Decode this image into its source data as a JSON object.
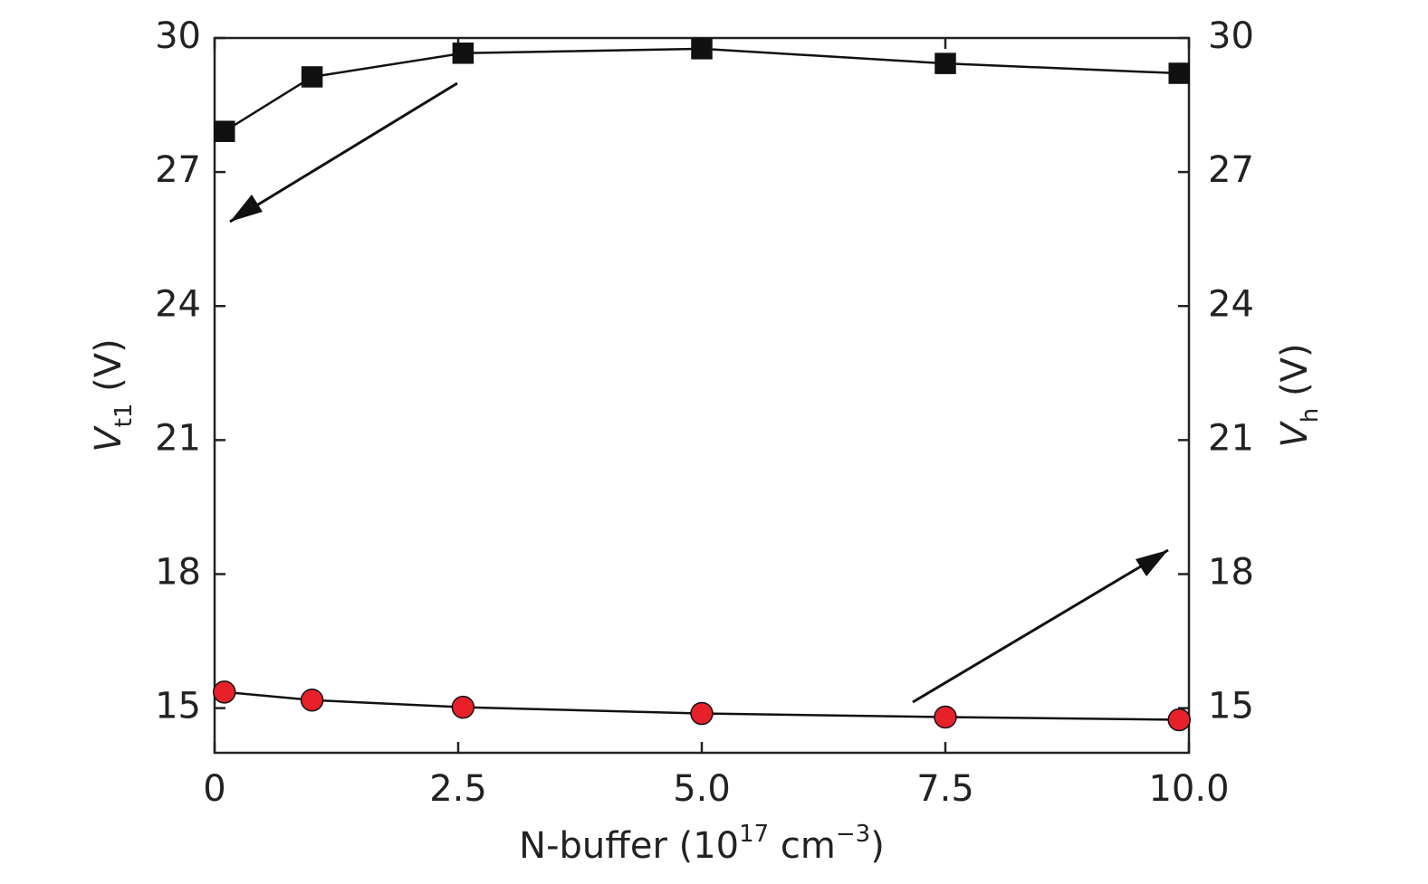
{
  "chart_data": {
    "type": "line",
    "xlabel": [
      {
        "text": "N-buffer (10"
      },
      {
        "text": "17",
        "sup": true
      },
      {
        "text": " cm"
      },
      {
        "text": "−3",
        "sup": true
      },
      {
        "text": ")"
      }
    ],
    "ylabel": [
      {
        "text": "V",
        "italic": true
      },
      {
        "text": "t1",
        "sub": true
      },
      {
        "text": " (V)"
      }
    ],
    "y2label": [
      {
        "text": "V",
        "italic": true
      },
      {
        "text": "h",
        "sub": true
      },
      {
        "text": " (V)"
      }
    ],
    "xlim": [
      0,
      10
    ],
    "xticks": [
      0,
      2.5,
      {
        "value": 5,
        "label": "5.0"
      },
      7.5,
      {
        "value": 10,
        "label": "10.0"
      }
    ],
    "ylim": [
      14,
      30
    ],
    "yticks": [
      15,
      18,
      21,
      24,
      27,
      30
    ],
    "y2lim": [
      14,
      30
    ],
    "y2ticks": [
      15,
      18,
      21,
      24,
      27,
      30
    ],
    "x": [
      0.1,
      1,
      2.55,
      5,
      7.5,
      9.9
    ],
    "series": [
      {
        "color": "#111111",
        "marker": "square",
        "values": [
          27.91,
          29.13,
          29.66,
          29.76,
          29.43,
          29.21
        ]
      },
      {
        "color": "#e8202a",
        "marker": "circle",
        "axis": "y2",
        "values": [
          15.36,
          15.18,
          15.02,
          14.88,
          14.8,
          14.74
        ]
      }
    ]
  }
}
